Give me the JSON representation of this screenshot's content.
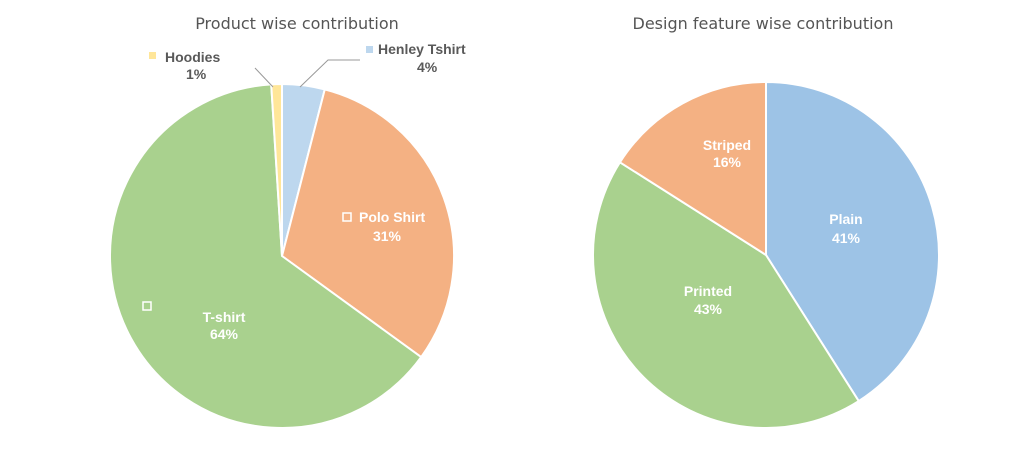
{
  "chart_data": [
    {
      "type": "pie",
      "title": "Product wise contribution",
      "slices": [
        {
          "name": "Henley Tshirt",
          "value": 4,
          "label": "4%",
          "color": "#bdd7ee"
        },
        {
          "name": "Polo Shirt",
          "value": 31,
          "label": "31%",
          "color": "#f4b183"
        },
        {
          "name": "T-shirt",
          "value": 64,
          "label": "64%",
          "color": "#a9d18e"
        },
        {
          "name": "Hoodies",
          "value": 1,
          "label": "1%",
          "color": "#ffe699"
        }
      ]
    },
    {
      "type": "pie",
      "title": "Design feature wise contribution",
      "slices": [
        {
          "name": "Plain",
          "value": 41,
          "label": "41%",
          "color": "#9dc3e6"
        },
        {
          "name": "Printed",
          "value": 43,
          "label": "43%",
          "color": "#a9d18e"
        },
        {
          "name": "Striped",
          "value": 16,
          "label": "16%",
          "color": "#f4b183"
        }
      ]
    }
  ]
}
